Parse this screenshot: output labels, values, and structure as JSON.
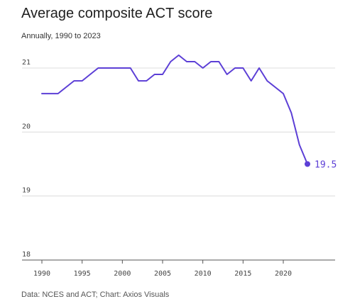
{
  "chart_data": {
    "type": "line",
    "title": "Average composite ACT score",
    "subtitle": "Annually, 1990 to 2023",
    "x": [
      1990,
      1991,
      1992,
      1993,
      1994,
      1995,
      1996,
      1997,
      1998,
      1999,
      2000,
      2001,
      2002,
      2003,
      2004,
      2005,
      2006,
      2007,
      2008,
      2009,
      2010,
      2011,
      2012,
      2013,
      2014,
      2015,
      2016,
      2017,
      2018,
      2019,
      2020,
      2021,
      2022,
      2023
    ],
    "series": [
      {
        "values": [
          20.6,
          20.6,
          20.6,
          20.7,
          20.8,
          20.8,
          20.9,
          21.0,
          21.0,
          21.0,
          21.0,
          21.0,
          20.8,
          20.8,
          20.9,
          20.9,
          21.1,
          21.2,
          21.1,
          21.1,
          21.0,
          21.1,
          21.1,
          20.9,
          21.0,
          21.0,
          20.8,
          21.0,
          20.8,
          20.7,
          20.6,
          20.3,
          19.8,
          19.5
        ]
      }
    ],
    "xlim": [
      1990,
      2023
    ],
    "ylim": [
      18,
      21.4
    ],
    "x_ticks": [
      "1990",
      "1995",
      "2000",
      "2005",
      "2010",
      "2015",
      "2020"
    ],
    "y_ticks": [
      "21",
      "20",
      "19",
      "18"
    ],
    "end_label": "19.5",
    "grid": true,
    "line_color": "#5c3fd6"
  },
  "footer": "Data: NCES and ACT; Chart: Axios Visuals"
}
